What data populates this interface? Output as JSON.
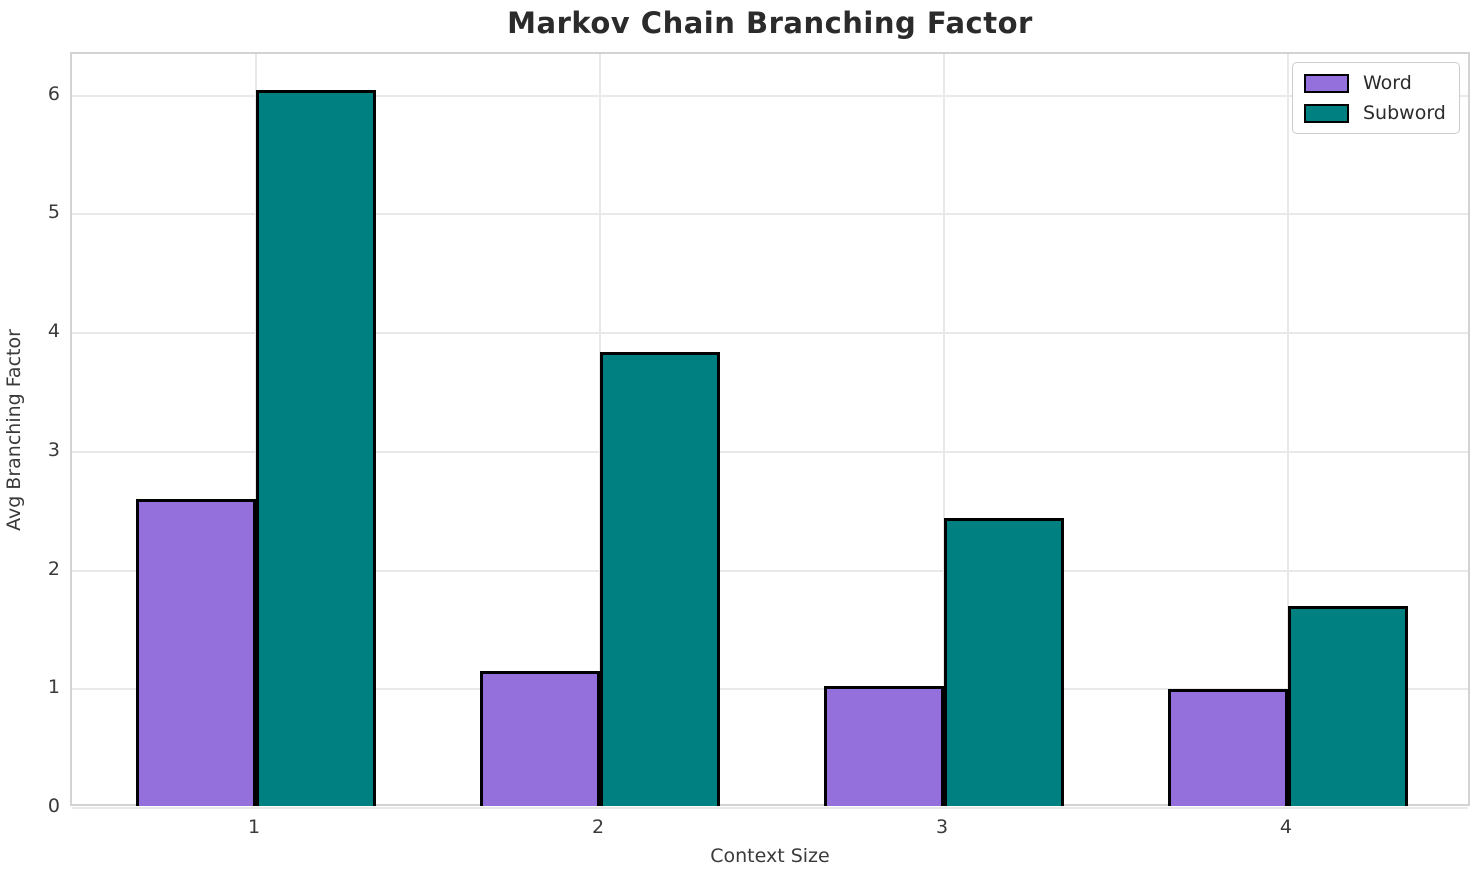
{
  "chart_data": {
    "type": "bar",
    "title": "Markov Chain Branching Factor",
    "xlabel": "Context Size",
    "ylabel": "Avg Branching Factor",
    "categories": [
      "1",
      "2",
      "3",
      "4"
    ],
    "series": [
      {
        "name": "Word",
        "color": "#9370DB",
        "values": [
          2.6,
          1.15,
          1.03,
          1.0
        ]
      },
      {
        "name": "Subword",
        "color": "#008080",
        "values": [
          6.05,
          3.84,
          2.44,
          1.7
        ]
      }
    ],
    "yticks": [
      "0",
      "1",
      "2",
      "3",
      "4",
      "5",
      "6"
    ],
    "ylim": [
      0,
      6.35
    ],
    "grid": true,
    "legend_position": "upper right",
    "bar_edge_color": "#000000",
    "grid_color": "#e9e9e9",
    "spine_color": "#d3d3d3",
    "text_color": "#3a3a3a",
    "title_color": "#2b2b2b"
  }
}
